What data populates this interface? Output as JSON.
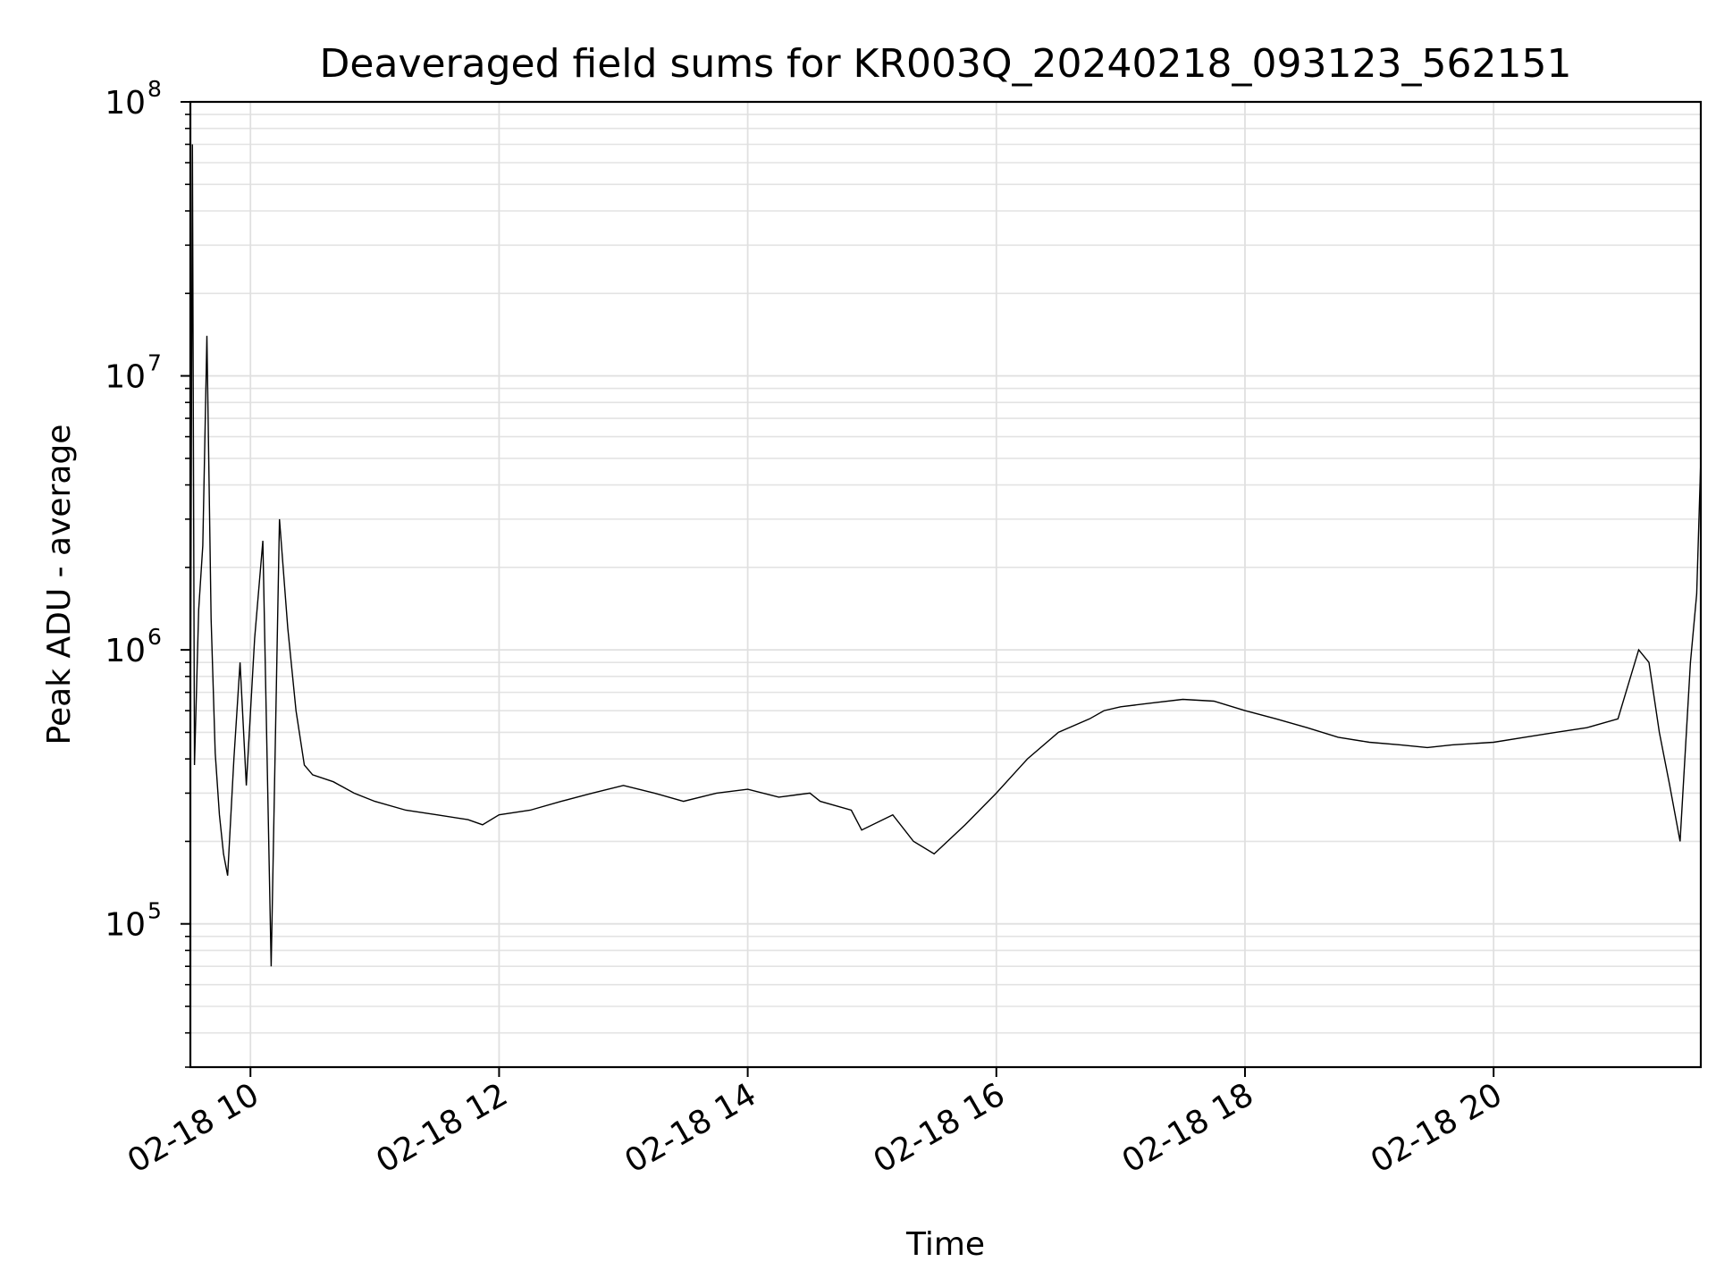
{
  "chart_data": {
    "type": "line",
    "title": "Deaveraged field sums for KR003Q_20240218_093123_562151",
    "xlabel": "Time",
    "ylabel": "Peak ADU - average",
    "yscale": "log",
    "ylim": [
      30000,
      100000000
    ],
    "xlim": [
      "2024-02-18T09:31",
      "2024-02-18T21:40"
    ],
    "grid": true,
    "line_color": "#000000",
    "x_ticks": [
      {
        "time": "2024-02-18T10:00",
        "label": "02-18 10"
      },
      {
        "time": "2024-02-18T12:00",
        "label": "02-18 12"
      },
      {
        "time": "2024-02-18T14:00",
        "label": "02-18 14"
      },
      {
        "time": "2024-02-18T16:00",
        "label": "02-18 16"
      },
      {
        "time": "2024-02-18T18:00",
        "label": "02-18 18"
      },
      {
        "time": "2024-02-18T20:00",
        "label": "02-18 20"
      }
    ],
    "y_ticks": [
      {
        "value": 100000,
        "base": "10",
        "exp": "5"
      },
      {
        "value": 1000000,
        "base": "10",
        "exp": "6"
      },
      {
        "value": 10000000,
        "base": "10",
        "exp": "7"
      },
      {
        "value": 100000000,
        "base": "10",
        "exp": "8"
      }
    ],
    "series": [
      {
        "x": [
          "2024-02-18T09:31",
          "2024-02-18T09:32",
          "2024-02-18T09:33",
          "2024-02-18T09:35",
          "2024-02-18T09:37",
          "2024-02-18T09:39",
          "2024-02-18T09:41",
          "2024-02-18T09:43",
          "2024-02-18T09:45",
          "2024-02-18T09:47",
          "2024-02-18T09:49",
          "2024-02-18T09:52",
          "2024-02-18T09:55",
          "2024-02-18T09:58",
          "2024-02-18T10:02",
          "2024-02-18T10:06",
          "2024-02-18T10:10",
          "2024-02-18T10:14",
          "2024-02-18T10:18",
          "2024-02-18T10:22",
          "2024-02-18T10:26",
          "2024-02-18T10:30",
          "2024-02-18T10:40",
          "2024-02-18T10:50",
          "2024-02-18T11:00",
          "2024-02-18T11:15",
          "2024-02-18T11:30",
          "2024-02-18T11:45",
          "2024-02-18T11:52",
          "2024-02-18T12:00",
          "2024-02-18T12:15",
          "2024-02-18T12:30",
          "2024-02-18T12:45",
          "2024-02-18T13:00",
          "2024-02-18T13:15",
          "2024-02-18T13:29",
          "2024-02-18T13:45",
          "2024-02-18T14:00",
          "2024-02-18T14:15",
          "2024-02-18T14:30",
          "2024-02-18T14:35",
          "2024-02-18T14:50",
          "2024-02-18T14:55",
          "2024-02-18T15:10",
          "2024-02-18T15:20",
          "2024-02-18T15:30",
          "2024-02-18T15:45",
          "2024-02-18T16:00",
          "2024-02-18T16:15",
          "2024-02-18T16:30",
          "2024-02-18T16:45",
          "2024-02-18T16:52",
          "2024-02-18T17:00",
          "2024-02-18T17:15",
          "2024-02-18T17:30",
          "2024-02-18T17:45",
          "2024-02-18T18:00",
          "2024-02-18T18:15",
          "2024-02-18T18:30",
          "2024-02-18T18:45",
          "2024-02-18T19:00",
          "2024-02-18T19:15",
          "2024-02-18T19:28",
          "2024-02-18T19:40",
          "2024-02-18T20:00",
          "2024-02-18T20:15",
          "2024-02-18T20:30",
          "2024-02-18T20:45",
          "2024-02-18T21:00",
          "2024-02-18T21:10",
          "2024-02-18T21:15",
          "2024-02-18T21:20",
          "2024-02-18T21:25",
          "2024-02-18T21:30",
          "2024-02-18T21:35",
          "2024-02-18T21:38",
          "2024-02-18T21:40"
        ],
        "y": [
          450000,
          70000000,
          380000,
          1400000,
          2400000,
          14000000,
          1300000,
          420000,
          250000,
          180000,
          150000,
          400000,
          900000,
          320000,
          1100000,
          2500000,
          70000,
          3000000,
          1200000,
          600000,
          380000,
          350000,
          330000,
          300000,
          280000,
          260000,
          250000,
          240000,
          230000,
          250000,
          260000,
          280000,
          300000,
          320000,
          300000,
          280000,
          300000,
          310000,
          290000,
          300000,
          280000,
          260000,
          220000,
          250000,
          200000,
          180000,
          230000,
          300000,
          400000,
          500000,
          560000,
          600000,
          620000,
          640000,
          660000,
          650000,
          600000,
          560000,
          520000,
          480000,
          460000,
          450000,
          440000,
          450000,
          460000,
          480000,
          500000,
          520000,
          560000,
          1000000,
          900000,
          500000,
          320000,
          200000,
          900000,
          1600000,
          5000000
        ]
      }
    ]
  }
}
